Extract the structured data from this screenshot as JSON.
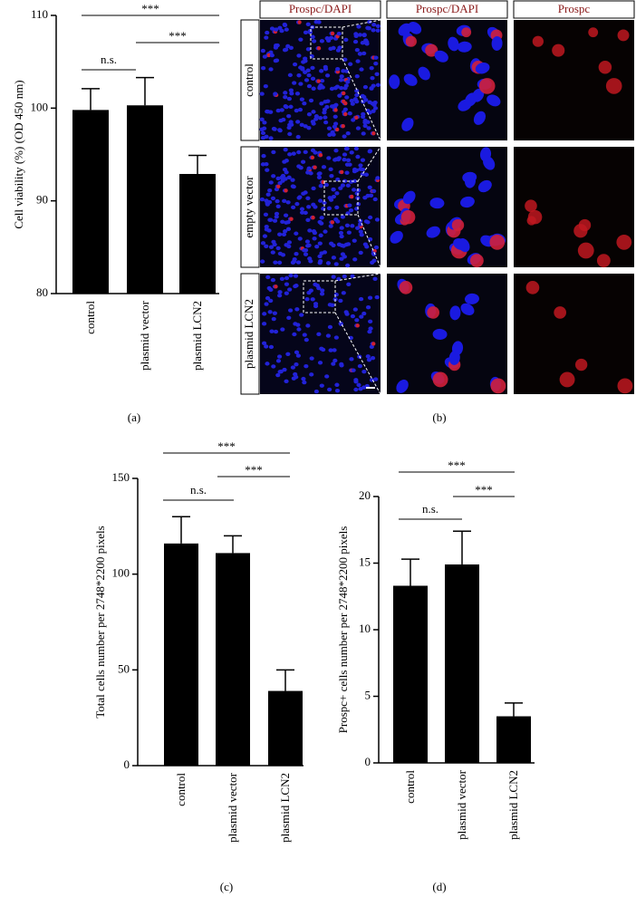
{
  "chart_data": [
    {
      "type": "bar",
      "panel_label": "(a)",
      "ylabel": "Cell viability (%) (OD 450 nm)",
      "categories": [
        "control",
        "plasmid vector",
        "plasmid LCN2"
      ],
      "values": [
        99.8,
        100.3,
        92.9
      ],
      "errors": [
        2.3,
        3.0,
        2.0
      ],
      "color": "#000000",
      "ylim": [
        80,
        110
      ],
      "yticks": [
        80,
        90,
        100,
        110
      ],
      "annotations": [
        "n.s.",
        "***",
        "***"
      ]
    },
    {
      "type": "bar",
      "panel_label": "(c)",
      "ylabel": "Total cells number per 2748*2200 pixels",
      "categories": [
        "control",
        "plasmid vector",
        "plasmid LCN2"
      ],
      "values": [
        116,
        111,
        39
      ],
      "errors": [
        14,
        9,
        11
      ],
      "color": "#000000",
      "ylim": [
        0,
        150
      ],
      "yticks": [
        0,
        50,
        100,
        150
      ],
      "annotations": [
        "n.s.",
        "***",
        "***"
      ]
    },
    {
      "type": "bar",
      "panel_label": "(d)",
      "ylabel": "Prospc+ cells number per 2748*2200 pixels",
      "categories": [
        "control",
        "plasmid vector",
        "plasmid LCN2"
      ],
      "values": [
        13.3,
        14.9,
        3.5
      ],
      "errors": [
        2.0,
        2.5,
        1.0
      ],
      "color": "#000000",
      "ylim": [
        0,
        20
      ],
      "yticks": [
        0,
        5,
        10,
        15,
        20
      ],
      "annotations": [
        "n.s.",
        "***",
        "***"
      ]
    }
  ],
  "figure_b": {
    "panel_label": "(b)",
    "column_headers": [
      "Prospc/DAPI",
      "Prospc/DAPI",
      "Prospc"
    ],
    "row_labels": [
      "control",
      "empty vector",
      "plasmid LCN2"
    ]
  }
}
